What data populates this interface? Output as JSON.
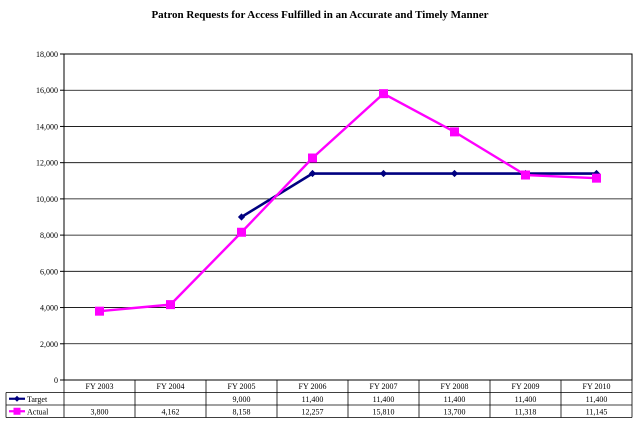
{
  "chart_data": {
    "type": "line",
    "title": "Patron Requests for Access Fulfilled in an Accurate and Timely Manner",
    "xlabel": "",
    "ylabel": "",
    "categories": [
      "FY 2003",
      "FY 2004",
      "FY 2005",
      "FY 2006",
      "FY 2007",
      "FY 2008",
      "FY 2009",
      "FY 2010"
    ],
    "ylim": [
      0,
      18000
    ],
    "yticks": [
      0,
      2000,
      4000,
      6000,
      8000,
      10000,
      12000,
      14000,
      16000,
      18000
    ],
    "ytick_labels": [
      "0",
      "2,000",
      "4,000",
      "6,000",
      "8,000",
      "10,000",
      "12,000",
      "14,000",
      "16,000",
      "18,000"
    ],
    "grid": true,
    "legend": "data-table",
    "series": [
      {
        "name": "Target",
        "color": "#000080",
        "marker": "diamond",
        "values": [
          null,
          null,
          9000,
          11400,
          11400,
          11400,
          11400,
          11400
        ],
        "labels": [
          "",
          "",
          "9,000",
          "11,400",
          "11,400",
          "11,400",
          "11,400",
          "11,400"
        ]
      },
      {
        "name": "Actual",
        "color": "#ff00ff",
        "marker": "square",
        "values": [
          3800,
          4162,
          8158,
          12257,
          15810,
          13700,
          11318,
          11145
        ],
        "labels": [
          "3,800",
          "4,162",
          "8,158",
          "12,257",
          "15,810",
          "13,700",
          "11,318",
          "11,145"
        ]
      }
    ]
  }
}
